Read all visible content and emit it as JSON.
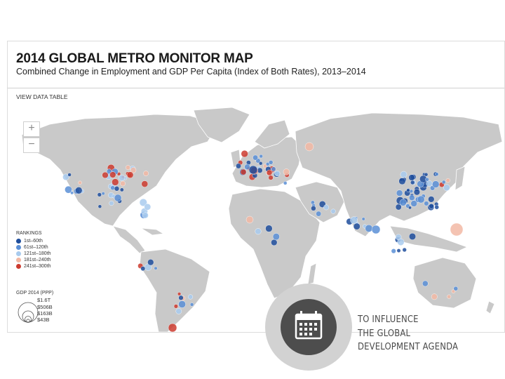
{
  "header": {
    "title": "2014 GLOBAL METRO MONITOR MAP",
    "subtitle": "Combined Change in Employment and GDP Per Capita (Index of Both Rates), 2013–2014",
    "view_data_table": "VIEW DATA TABLE"
  },
  "map": {
    "zoom_in": "+",
    "zoom_out": "−",
    "land_color": "#c9c9c9",
    "border_color": "#ffffff"
  },
  "legend": {
    "rankings_title": "RANKINGS",
    "items": [
      {
        "label": "1st–60th",
        "color": "#1f4e9c"
      },
      {
        "label": "61st–120th",
        "color": "#5b8fd6"
      },
      {
        "label": "121st–180th",
        "color": "#a9cbee"
      },
      {
        "label": "181st–240th",
        "color": "#f2b8a4"
      },
      {
        "label": "241st–300th",
        "color": "#cc3b2f"
      }
    ],
    "gdp_title": "GDP 2014 (PPP)",
    "gdp_labels": [
      "$1.6T",
      "$506B",
      "$163B",
      "$43B"
    ]
  },
  "badge": {
    "icon": "calendar-icon",
    "lines": [
      "TO INFLUENCE",
      "THE GLOBAL",
      "DEVELOPMENT AGENDA"
    ]
  }
}
